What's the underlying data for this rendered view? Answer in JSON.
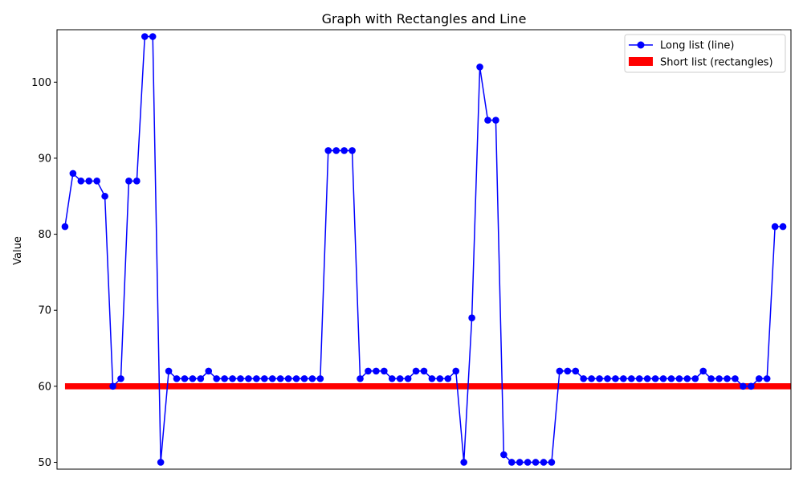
{
  "chart_data": {
    "type": "line",
    "title": "Graph with Rectangles and Line",
    "xlabel": "",
    "ylabel": "Value",
    "ylim": [
      49.1,
      106.9
    ],
    "xlim": [
      -1,
      91
    ],
    "yticks": [
      50,
      60,
      70,
      80,
      90,
      100
    ],
    "grid": false,
    "legend_position": "top-right",
    "series": [
      {
        "name": "Long list (line)",
        "kind": "line",
        "color": "#0000ff",
        "marker": "circle",
        "values": [
          81,
          88,
          87,
          87,
          87,
          85,
          60,
          61,
          87,
          87,
          106,
          106,
          50,
          62,
          61,
          61,
          61,
          61,
          62,
          61,
          61,
          61,
          61,
          61,
          61,
          61,
          61,
          61,
          61,
          61,
          61,
          61,
          61,
          91,
          91,
          91,
          91,
          61,
          62,
          62,
          62,
          61,
          61,
          61,
          62,
          62,
          61,
          61,
          61,
          62,
          50,
          69,
          102,
          95,
          95,
          51,
          50,
          50,
          50,
          50,
          50,
          50,
          62,
          62,
          62,
          61,
          61,
          61,
          61,
          61,
          61,
          61,
          61,
          61,
          61,
          61,
          61,
          61,
          61,
          61,
          62,
          61,
          61,
          61,
          61,
          60,
          60,
          61,
          61,
          81,
          81
        ]
      },
      {
        "name": "Short list (rectangles)",
        "kind": "rectangles",
        "color": "#ff0000",
        "x_start": 0,
        "x_end": 91,
        "y_start": 59.6,
        "y_end": 60.4
      }
    ]
  }
}
